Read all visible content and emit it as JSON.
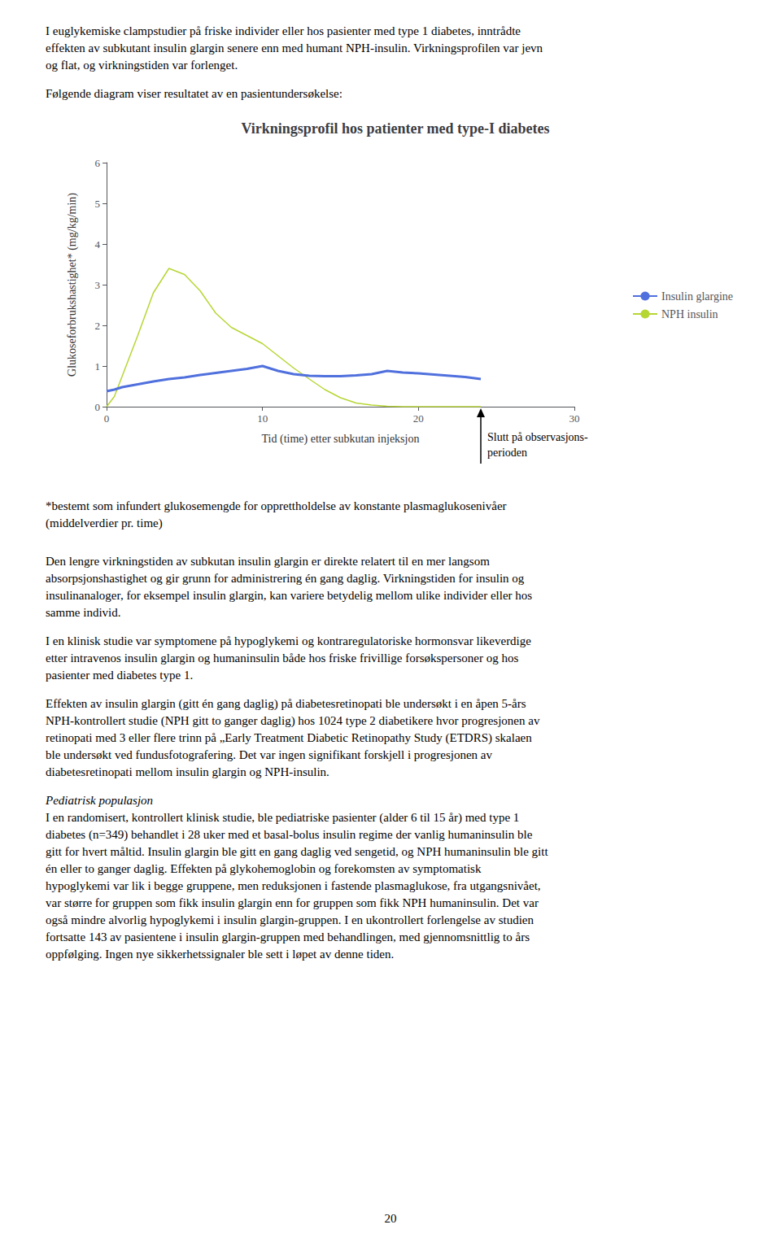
{
  "paragraphs_before": [
    [
      "I euglykemiske clampstudier på friske individer eller hos pasienter med type 1 diabetes, inntrådte",
      "effekten av subkutant insulin glargin senere enn med humant NPH-insulin. Virkningsprofilen var jevn",
      "og flat, og virkningstiden var forlenget."
    ],
    [
      "Følgende diagram viser resultatet av en pasientundersøkelse:"
    ]
  ],
  "paragraphs_after": [
    {
      "lines": [
        "Den lengre virkningstiden av subkutan insulin glargin er direkte relatert til en mer langsom",
        "absorpsjonshastighet og gir grunn for administrering én gang daglig. Virkningstiden for insulin og",
        "insulinanaloger, for eksempel insulin glargin, kan variere betydelig mellom ulike individer eller hos",
        "samme individ."
      ]
    },
    {
      "lines": [
        "I en klinisk studie var symptomene på hypoglykemi og kontraregulatoriske hormonsvar likeverdige",
        "etter intravenos insulin glargin og humaninsulin både hos friske frivillige forsøkspersoner og hos",
        "pasienter med diabetes type 1."
      ]
    },
    {
      "lines": [
        "Effekten av insulin glargin (gitt én gang daglig) på diabetesretinopati ble undersøkt i en åpen 5-års",
        "NPH-kontrollert studie (NPH gitt to ganger daglig) hos 1024 type 2 diabetikere hvor progresjonen av",
        "retinopati med 3 eller flere trinn på „Early Treatment Diabetic Retinopathy Study (ETDRS) skalaen",
        "ble undersøkt ved fundusfotografering. Det var ingen signifikant forskjell i progresjonen av",
        "diabetesretinopati mellom insulin glargin og NPH-insulin."
      ]
    },
    {
      "heading": "Pediatrisk populasjon",
      "lines": [
        "I en randomisert, kontrollert klinisk studie, ble pediatriske pasienter (alder 6 til 15 år) med type 1",
        "diabetes (n=349) behandlet i 28 uker med et basal-bolus insulin regime der vanlig humaninsulin ble",
        "gitt for hvert måltid. Insulin glargin ble gitt en gang daglig ved sengetid, og NPH humaninsulin ble gitt",
        "én eller to ganger daglig. Effekten på glykohemoglobin og forekomsten av symptomatisk",
        "hypoglykemi var lik i begge gruppene, men reduksjonen i fastende plasmaglukose, fra utgangsnivået,",
        "var større for gruppen som fikk insulin glargin enn for gruppen som fikk NPH humaninsulin. Det var",
        "også mindre alvorlig hypoglykemi i insulin glargin-gruppen. I en ukontrollert forlengelse av studien",
        "fortsatte 143 av pasientene i insulin glargin-gruppen med behandlingen, med gjennomsnittlig to års",
        "oppfølging. Ingen nye sikkerhetssignaler ble sett i løpet av denne tiden."
      ]
    }
  ],
  "page_number": "20",
  "chart_data": {
    "type": "line",
    "title": "Virkningsprofil hos patienter med type-I diabetes",
    "xlabel": "Tid (time) etter subkutan injeksjon",
    "ylabel": "Glukoseforbrukshastighet* (mg/kg/min)",
    "x": [
      0,
      0.5,
      1,
      2,
      3,
      4,
      5,
      6,
      7,
      8,
      9,
      10,
      11,
      12,
      13,
      14,
      15,
      16,
      17,
      18,
      19,
      20,
      21,
      22,
      23,
      24
    ],
    "series": [
      {
        "name": "Insulin glargine",
        "values": [
          0.38,
          0.42,
          0.48,
          0.55,
          0.62,
          0.68,
          0.72,
          0.78,
          0.83,
          0.88,
          0.93,
          1.0,
          0.88,
          0.8,
          0.76,
          0.75,
          0.75,
          0.77,
          0.8,
          0.88,
          0.84,
          0.82,
          0.79,
          0.76,
          0.73,
          0.68
        ]
      },
      {
        "name": "NPH insulin",
        "values": [
          0.0,
          0.25,
          0.75,
          1.75,
          2.8,
          3.4,
          3.25,
          2.85,
          2.3,
          1.95,
          1.75,
          1.55,
          1.25,
          0.95,
          0.68,
          0.42,
          0.22,
          0.09,
          0.04,
          0.01,
          0.0,
          0.0,
          0.0,
          0.0,
          0.0,
          0.0
        ]
      }
    ],
    "xlim": [
      0,
      30
    ],
    "ylim": [
      0,
      6
    ],
    "xticks": [
      0,
      10,
      20,
      30
    ],
    "yticks": [
      0,
      1,
      2,
      3,
      4,
      5,
      6
    ],
    "grid": false,
    "legend": "right",
    "annotations": [
      {
        "x": 24,
        "y": 0,
        "text": [
          "Slutt på observasjons-",
          "perioden"
        ]
      }
    ],
    "footnote": [
      "*bestemt som infundert glukosemengde for opprettholdelse av konstante plasmaglukosenivåer",
      "(middelverdier pr. time)"
    ]
  }
}
